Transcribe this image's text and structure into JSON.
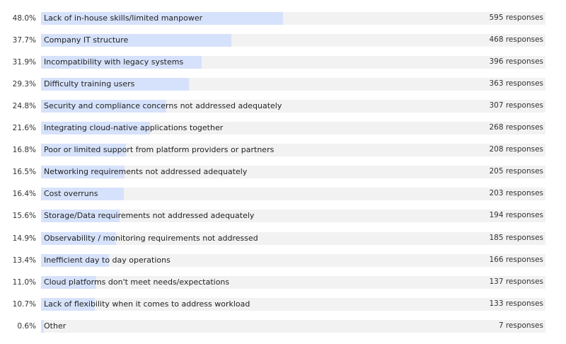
{
  "chart_data": {
    "type": "bar",
    "orientation": "horizontal",
    "bar_color": "#d6e2fb",
    "track_color": "#f2f2f2",
    "xlim": [
      0,
      100
    ],
    "items": [
      {
        "label": "Lack of in-house skills/limited manpower",
        "percent": 48.0,
        "percent_label": "48.0%",
        "responses_label": "595 responses"
      },
      {
        "label": "Company IT structure",
        "percent": 37.7,
        "percent_label": "37.7%",
        "responses_label": "468 responses"
      },
      {
        "label": "Incompatibility with legacy systems",
        "percent": 31.9,
        "percent_label": "31.9%",
        "responses_label": "396 responses"
      },
      {
        "label": "Difficulty training users",
        "percent": 29.3,
        "percent_label": "29.3%",
        "responses_label": "363 responses"
      },
      {
        "label": "Security and compliance concerns not addressed adequately",
        "percent": 24.8,
        "percent_label": "24.8%",
        "responses_label": "307 responses"
      },
      {
        "label": "Integrating cloud-native applications together",
        "percent": 21.6,
        "percent_label": "21.6%",
        "responses_label": "268 responses"
      },
      {
        "label": "Poor or limited support from platform providers or partners",
        "percent": 16.8,
        "percent_label": "16.8%",
        "responses_label": "208 responses"
      },
      {
        "label": "Networking requirements not addressed adequately",
        "percent": 16.5,
        "percent_label": "16.5%",
        "responses_label": "205 responses"
      },
      {
        "label": "Cost overruns",
        "percent": 16.4,
        "percent_label": "16.4%",
        "responses_label": "203 responses"
      },
      {
        "label": "Storage/Data requirements not addressed adequately",
        "percent": 15.6,
        "percent_label": "15.6%",
        "responses_label": "194 responses"
      },
      {
        "label": "Observability / monitoring requirements not addressed",
        "percent": 14.9,
        "percent_label": "14.9%",
        "responses_label": "185 responses"
      },
      {
        "label": "Inefficient day to day operations",
        "percent": 13.4,
        "percent_label": "13.4%",
        "responses_label": "166 responses"
      },
      {
        "label": "Cloud platforms don't meet needs/expectations",
        "percent": 11.0,
        "percent_label": "11.0%",
        "responses_label": "137 responses"
      },
      {
        "label": "Lack of flexibility when it comes to address workload",
        "percent": 10.7,
        "percent_label": "10.7%",
        "responses_label": "133 responses"
      },
      {
        "label": "Other",
        "percent": 0.6,
        "percent_label": "0.6%",
        "responses_label": "7 responses"
      }
    ]
  }
}
